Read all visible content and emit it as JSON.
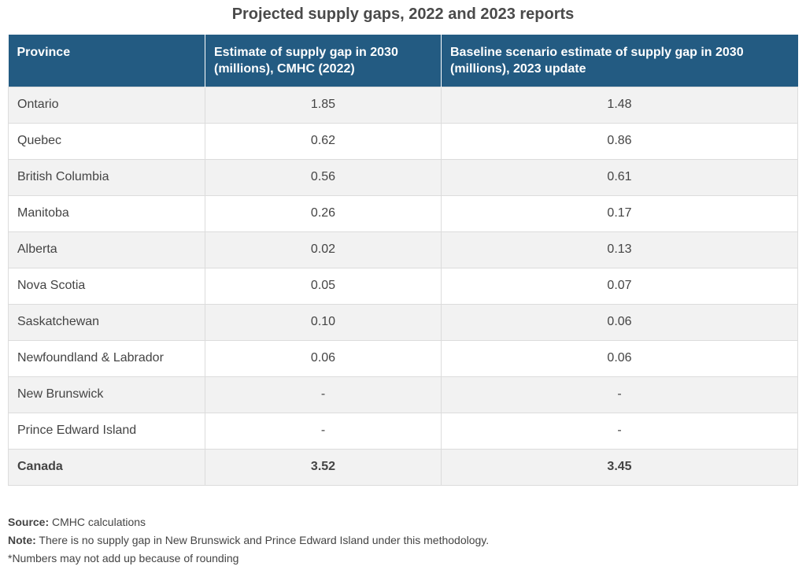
{
  "title": "Projected supply gaps, 2022 and 2023 reports",
  "table": {
    "headers": [
      "Province",
      "Estimate of supply gap in 2030 (millions), CMHC (2022)",
      "Baseline scenario estimate of supply gap in 2030 (millions), 2023 update"
    ],
    "rows": [
      {
        "province": "Ontario",
        "gap_2022": "1.85",
        "gap_2023": "1.48"
      },
      {
        "province": "Quebec",
        "gap_2022": "0.62",
        "gap_2023": "0.86"
      },
      {
        "province": "British Columbia",
        "gap_2022": "0.56",
        "gap_2023": "0.61"
      },
      {
        "province": "Manitoba",
        "gap_2022": "0.26",
        "gap_2023": "0.17"
      },
      {
        "province": "Alberta",
        "gap_2022": "0.02",
        "gap_2023": "0.13"
      },
      {
        "province": "Nova Scotia",
        "gap_2022": "0.05",
        "gap_2023": "0.07"
      },
      {
        "province": "Saskatchewan",
        "gap_2022": "0.10",
        "gap_2023": "0.06"
      },
      {
        "province": "Newfoundland & Labrador",
        "gap_2022": "0.06",
        "gap_2023": "0.06"
      },
      {
        "province": "New Brunswick",
        "gap_2022": "-",
        "gap_2023": "-"
      },
      {
        "province": "Prince Edward Island",
        "gap_2022": "-",
        "gap_2023": "-"
      }
    ],
    "total": {
      "province": "Canada",
      "gap_2022": "3.52",
      "gap_2023": "3.45"
    }
  },
  "notes": {
    "source_label": "Source:",
    "source_text": "CMHC calculations",
    "note_label": "Note:",
    "note_text": "There is no supply gap in New Brunswick and Prince Edward Island under this methodology.",
    "rounding": "*Numbers may not add up because of rounding"
  },
  "colors": {
    "header_bg": "#235b82",
    "stripe": "#f2f2f2"
  }
}
